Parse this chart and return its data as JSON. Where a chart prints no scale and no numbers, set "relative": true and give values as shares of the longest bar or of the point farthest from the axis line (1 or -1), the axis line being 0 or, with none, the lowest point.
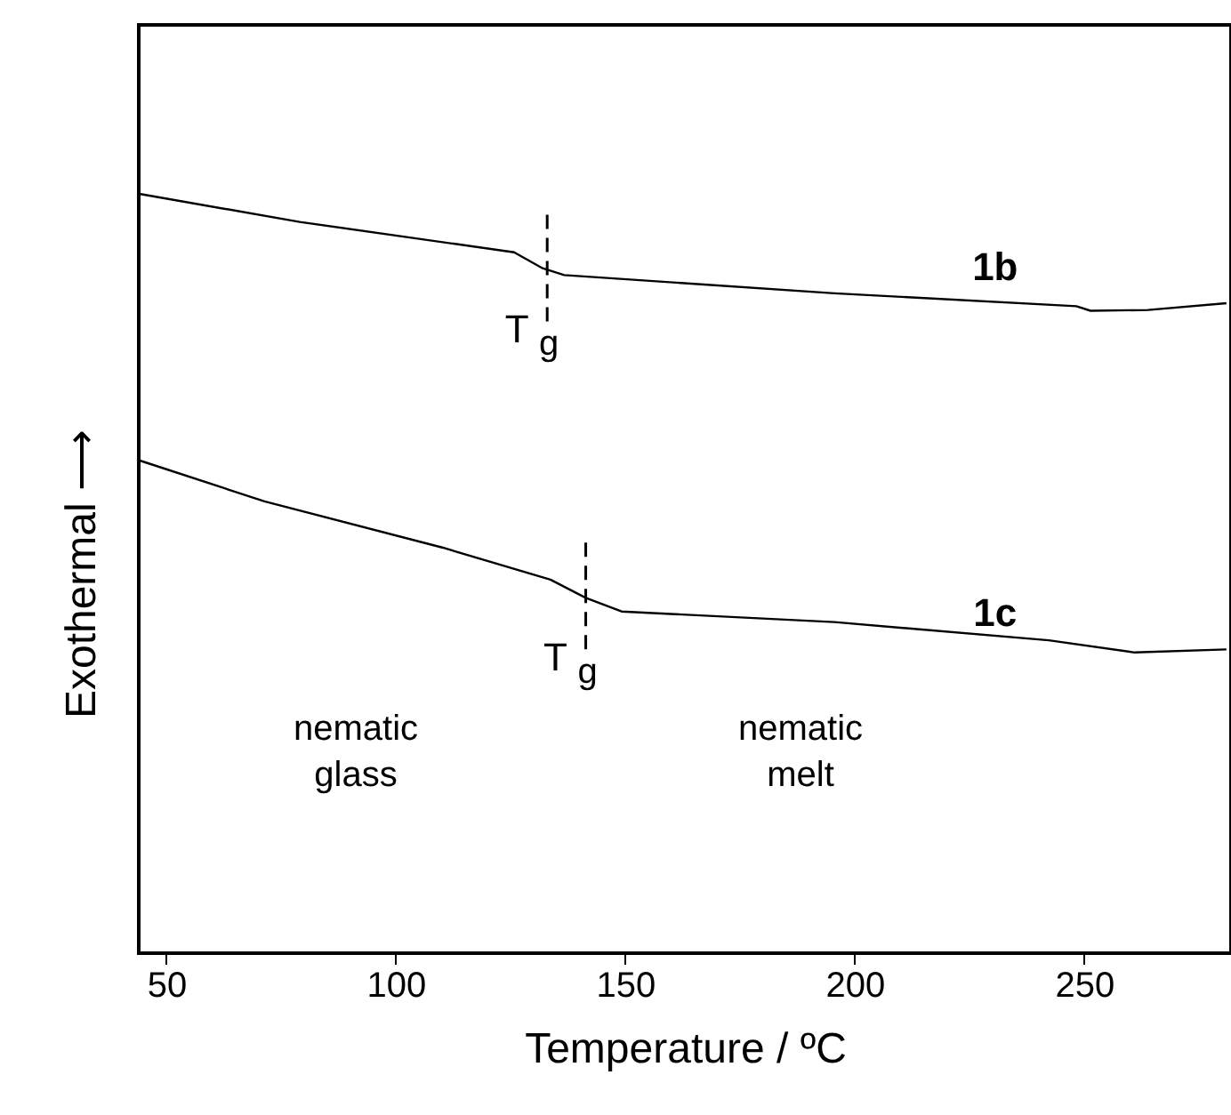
{
  "chart_data": {
    "type": "line",
    "relative": true,
    "xlabel": "Temperature / ºC",
    "ylabel": "Exothermal ⟶",
    "xlim": [
      44,
      282
    ],
    "xticks": [
      50,
      100,
      150,
      200,
      250
    ],
    "grid": false,
    "marker": "none",
    "line_style": "solid",
    "series": [
      {
        "name": "1b",
        "color": "#000000",
        "x": [
          44.1,
          79.1,
          125.8,
          132.0,
          136.7,
          195.6,
          248.3,
          251.4,
          263.9,
          281
        ],
        "values": [
          1.0,
          0.963,
          0.923,
          0.902,
          0.893,
          0.869,
          0.852,
          0.846,
          0.847,
          0.856
        ]
      },
      {
        "name": "1c",
        "color": "#000000",
        "x": [
          44.1,
          71.4,
          110.3,
          133.7,
          141.4,
          149.2,
          195.6,
          242.3,
          261.0,
          281
        ],
        "values": [
          0.649,
          0.595,
          0.534,
          0.492,
          0.468,
          0.45,
          0.436,
          0.412,
          0.396,
          0.4
        ]
      }
    ],
    "annotations": [
      {
        "text": "T$_{g}$",
        "x": 133,
        "y": 0.9
      },
      {
        "text": "T$_{g}$",
        "x": 141.4,
        "y": 0.468
      },
      "nematic\nglass",
      "nematic\nmelt"
    ]
  }
}
